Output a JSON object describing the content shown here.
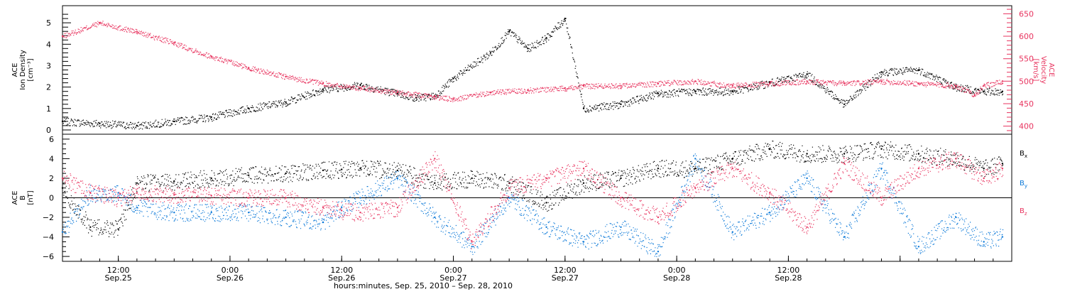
{
  "colors": {
    "density": "#000000",
    "velocity": "#e8345f",
    "bx": "#000000",
    "by": "#0a78d8",
    "bz": "#e8345f",
    "frame": "#000000",
    "zero_line": "#000000"
  },
  "chart_data": [
    {
      "type": "scatter",
      "id": "density_velocity",
      "xlim_hours": [
        -18,
        84
      ],
      "left_axis": {
        "label_lines": [
          "ACE",
          "Ion Density",
          "[cm⁻³]"
        ],
        "ylim": [
          -0.2,
          5.8
        ],
        "ticks": [
          0,
          1,
          2,
          3,
          4,
          5
        ],
        "tick_labels": [
          "0",
          "1",
          "2",
          "3",
          "4",
          "5"
        ]
      },
      "right_axis": {
        "label_lines": [
          "ACE",
          "Velocity",
          "[km/s]"
        ],
        "ylim": [
          382,
          668
        ],
        "ticks": [
          400,
          450,
          500,
          550,
          600,
          650
        ],
        "tick_labels": [
          "400",
          "450",
          "500",
          "550",
          "600",
          "650"
        ]
      },
      "series": [
        {
          "key": "density",
          "axis": "left",
          "x": [
            -18,
            -14,
            -10,
            -6,
            -2,
            2,
            6,
            10,
            14,
            18,
            20,
            22,
            24,
            28,
            30,
            32,
            34,
            36,
            38,
            42,
            46,
            50,
            54,
            58,
            62,
            66,
            70,
            74,
            78,
            81,
            83
          ],
          "y": [
            0.4,
            0.3,
            0.2,
            0.4,
            0.6,
            1.0,
            1.3,
            1.9,
            2.1,
            1.7,
            1.5,
            1.6,
            2.4,
            3.6,
            4.6,
            3.8,
            4.3,
            5.2,
            1.0,
            1.2,
            1.7,
            1.8,
            1.8,
            2.2,
            2.6,
            1.2,
            2.7,
            2.8,
            2.0,
            1.8,
            1.8
          ]
        },
        {
          "key": "velocity",
          "axis": "right",
          "x": [
            -18,
            -14,
            -10,
            -6,
            -2,
            2,
            6,
            10,
            14,
            18,
            22,
            24,
            28,
            32,
            36,
            38,
            42,
            46,
            50,
            54,
            58,
            62,
            66,
            70,
            74,
            78,
            80,
            81,
            83
          ],
          "y": [
            600,
            630,
            610,
            585,
            555,
            530,
            510,
            495,
            485,
            475,
            465,
            460,
            475,
            480,
            485,
            490,
            490,
            495,
            500,
            490,
            495,
            500,
            495,
            500,
            495,
            490,
            470,
            490,
            500
          ]
        }
      ]
    },
    {
      "type": "scatter",
      "id": "magnetic_field",
      "xlim_hours": [
        -18,
        84
      ],
      "ylabel_lines": [
        "ACE",
        "B",
        "[nT]"
      ],
      "ylim": [
        -6.5,
        6.5
      ],
      "y_ticks": [
        -6,
        -4,
        -2,
        0,
        2,
        4,
        6
      ],
      "y_tick_labels": [
        "−6",
        "−4",
        "−2",
        "0",
        "2",
        "4",
        "6"
      ],
      "zero_line": true,
      "x_ticks_hours": [
        -12,
        0,
        12,
        24,
        36,
        48,
        60,
        72,
        84
      ],
      "x_tick_labels": [
        [
          "12:00",
          "Sep.25"
        ],
        [
          "0:00",
          "Sep.26"
        ],
        [
          "12:00",
          "Sep.26"
        ],
        [
          "0:00",
          "Sep.27"
        ],
        [
          "12:00",
          "Sep.27"
        ],
        [
          "0:00",
          "Sep.28"
        ],
        [
          "12:00",
          "Sep.28"
        ]
      ],
      "legend_placement": "right",
      "series": [
        {
          "key": "bx",
          "name": "B",
          "sub": "x",
          "x": [
            -18,
            -15,
            -12,
            -10,
            -6,
            -2,
            2,
            6,
            10,
            12,
            14,
            18,
            22,
            26,
            30,
            34,
            38,
            42,
            46,
            50,
            54,
            58,
            62,
            66,
            70,
            74,
            78,
            81,
            83
          ],
          "y": [
            1.0,
            -3.0,
            -3.2,
            1.5,
            1.7,
            2.0,
            2.3,
            2.5,
            2.8,
            2.9,
            3.0,
            2.8,
            1.5,
            2.0,
            1.5,
            -0.5,
            1.5,
            2.0,
            3.0,
            3.0,
            4.0,
            5.0,
            4.5,
            4.5,
            5.0,
            4.5,
            4.0,
            3.0,
            3.5
          ]
        },
        {
          "key": "by",
          "name": "B",
          "sub": "y",
          "x": [
            -18,
            -15,
            -12,
            -10,
            -6,
            -2,
            2,
            6,
            10,
            12,
            14,
            18,
            22,
            26,
            30,
            34,
            38,
            42,
            46,
            50,
            54,
            58,
            62,
            66,
            70,
            74,
            78,
            81,
            83
          ],
          "y": [
            -3.5,
            0.5,
            0.5,
            -1.0,
            -1.5,
            -1.5,
            -1.5,
            -2.0,
            -2.5,
            -1.0,
            0.0,
            2.0,
            -2.0,
            -5.0,
            0.0,
            -3.0,
            -4.5,
            -3.0,
            -5.5,
            4.0,
            -3.5,
            -1.5,
            2.0,
            -4.0,
            3.0,
            -5.0,
            -2.0,
            -4.5,
            -4.0
          ]
        },
        {
          "key": "bz",
          "name": "B",
          "sub": "z",
          "x": [
            -18,
            -15,
            -12,
            -10,
            -6,
            -2,
            2,
            6,
            10,
            12,
            14,
            18,
            22,
            26,
            30,
            34,
            38,
            42,
            46,
            50,
            54,
            58,
            62,
            66,
            70,
            74,
            78,
            81,
            83
          ],
          "y": [
            2.0,
            0.5,
            0.0,
            0.5,
            0.3,
            0.2,
            0.0,
            0.0,
            -1.0,
            -1.3,
            -1.5,
            -1.0,
            4.0,
            -4.5,
            1.0,
            2.0,
            3.0,
            0.0,
            -2.0,
            1.0,
            3.0,
            0.5,
            -3.0,
            3.5,
            0.0,
            3.0,
            4.0,
            2.0,
            3.0
          ]
        }
      ]
    }
  ],
  "footer": {
    "xlabel": "hours:minutes, Sep. 25, 2010 – Sep. 28, 2010"
  }
}
